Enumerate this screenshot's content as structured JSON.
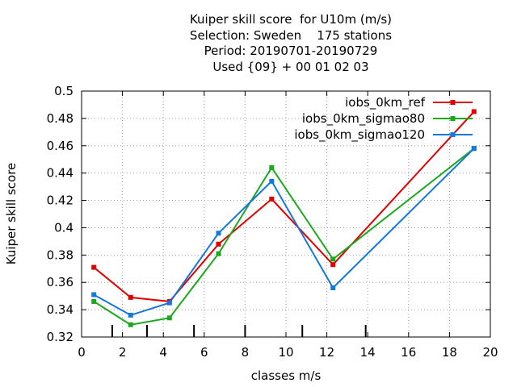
{
  "chart_data": {
    "type": "line",
    "title_lines": [
      "Kuiper skill score  for U10m (m/s)",
      "Selection: Sweden    175 stations",
      "Period: 20190701-20190729",
      "Used {09} + 00 01 02 03"
    ],
    "xlabel": "classes m/s",
    "ylabel": "Kuiper skill score",
    "xlim": [
      0,
      20
    ],
    "ylim": [
      0.32,
      0.5
    ],
    "x_ticks": [
      "0",
      "2",
      "4",
      "6",
      "8",
      "10",
      "12",
      "14",
      "16",
      "18",
      "20"
    ],
    "y_ticks": [
      "0.32",
      "0.34",
      "0.36",
      "0.38",
      "0.4",
      "0.42",
      "0.44",
      "0.46",
      "0.48",
      "0.5"
    ],
    "class_markers": [
      1.5,
      3.2,
      5.5,
      8.0,
      10.8,
      13.9
    ],
    "grid": true,
    "legend_position": "top-right",
    "series": [
      {
        "name": "iobs_0km_ref",
        "color": "#e00000",
        "x": [
          0.6,
          2.4,
          4.3,
          6.7,
          9.3,
          12.3,
          19.2
        ],
        "y": [
          0.371,
          0.349,
          0.346,
          0.388,
          0.421,
          0.373,
          0.485
        ]
      },
      {
        "name": "iobs_0km_sigmao80",
        "color": "#1ca81c",
        "x": [
          0.6,
          2.4,
          4.3,
          6.7,
          9.3,
          12.3,
          19.2
        ],
        "y": [
          0.346,
          0.329,
          0.334,
          0.381,
          0.444,
          0.377,
          0.458
        ]
      },
      {
        "name": "iobs_0km_sigmao120",
        "color": "#1478dc",
        "x": [
          0.6,
          2.4,
          4.3,
          6.7,
          9.3,
          12.3,
          19.2
        ],
        "y": [
          0.351,
          0.336,
          0.345,
          0.396,
          0.434,
          0.356,
          0.458
        ]
      }
    ]
  }
}
